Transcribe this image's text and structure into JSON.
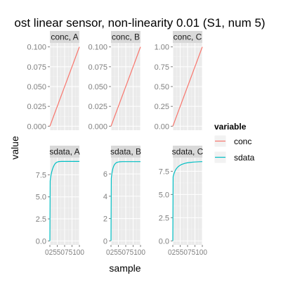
{
  "chart_data": {
    "type": "line",
    "title": "ost linear sensor, non-linearity 0.01 (S1, num 5)",
    "xlabel": "sample",
    "ylabel": "value",
    "grid": true,
    "legend_position": "right",
    "legend": {
      "title": "variable",
      "entries": [
        {
          "name": "conc",
          "color": "#F8766D"
        },
        {
          "name": "sdata",
          "color": "#00BFC4"
        }
      ]
    },
    "x_tick_text": "025507510 0",
    "x_tick_display": "0255075100",
    "xlim": [
      0,
      100
    ],
    "panels": [
      {
        "strip": "conc, A",
        "series": "conc",
        "ylim": [
          -0.005,
          0.105
        ],
        "yticks": [
          0.0,
          0.025,
          0.05,
          0.075,
          0.1
        ],
        "ytick_labels": [
          "0.000",
          "0.025",
          "0.050",
          "0.075",
          "0.100"
        ],
        "x": [
          0,
          100
        ],
        "y": [
          0.0,
          0.1
        ]
      },
      {
        "strip": "conc, B",
        "series": "conc",
        "ylim": [
          -0.005,
          0.105
        ],
        "yticks": [
          0.0,
          0.025,
          0.05,
          0.075,
          0.1
        ],
        "ytick_labels": [
          "0.000",
          "0.025",
          "0.050",
          "0.075",
          "0.100"
        ],
        "x": [
          0,
          100
        ],
        "y": [
          0.0,
          0.1
        ]
      },
      {
        "strip": "conc, C",
        "series": "conc",
        "ylim": [
          -0.05,
          1.05
        ],
        "yticks": [
          0.0,
          0.25,
          0.5,
          0.75,
          1.0
        ],
        "ytick_labels": [
          "0.00",
          "0.25",
          "0.50",
          "0.75",
          "1.00"
        ],
        "x": [
          0,
          100
        ],
        "y": [
          0.0,
          1.0
        ]
      },
      {
        "strip": "sdata, A",
        "series": "sdata",
        "ylim": [
          -0.45,
          9.45
        ],
        "yticks": [
          0.0,
          2.5,
          5.0,
          7.5
        ],
        "ytick_labels": [
          "0.0",
          "2.5",
          "5.0",
          "7.5"
        ],
        "x": [
          0,
          1,
          2,
          4,
          6,
          8,
          10,
          12,
          14,
          16,
          18,
          20,
          25,
          30,
          40,
          50,
          60,
          70,
          80,
          90,
          100
        ],
        "y": [
          0.0,
          6.8,
          7.1,
          7.5,
          7.8,
          8.05,
          8.25,
          8.42,
          8.56,
          8.68,
          8.77,
          8.84,
          8.95,
          9.0,
          9.02,
          9.02,
          9.02,
          9.02,
          9.02,
          9.02,
          9.02
        ]
      },
      {
        "strip": "sdata, B",
        "series": "sdata",
        "ylim": [
          -0.36,
          7.46
        ],
        "yticks": [
          0,
          2,
          4,
          6
        ],
        "ytick_labels": [
          "0",
          "2",
          "4",
          "6"
        ],
        "x": [
          0,
          1,
          2,
          4,
          6,
          8,
          10,
          12,
          14,
          16,
          18,
          20,
          25,
          30,
          40,
          50,
          60,
          70,
          80,
          90,
          100
        ],
        "y": [
          0.0,
          5.6,
          5.85,
          6.2,
          6.45,
          6.62,
          6.75,
          6.84,
          6.91,
          6.96,
          7.0,
          7.03,
          7.07,
          7.09,
          7.1,
          7.1,
          7.1,
          7.1,
          7.1,
          7.1,
          7.1
        ]
      },
      {
        "strip": "sdata, C",
        "series": "sdata",
        "ylim": [
          -0.43,
          8.97
        ],
        "yticks": [
          0.0,
          2.5,
          5.0,
          7.5
        ],
        "ytick_labels": [
          "0.0",
          "2.5",
          "5.0",
          "7.5"
        ],
        "x": [
          0,
          1,
          2,
          4,
          6,
          8,
          10,
          14,
          18,
          22,
          26,
          30,
          40,
          50,
          60,
          70,
          80,
          90,
          100
        ],
        "y": [
          0.0,
          6.9,
          7.05,
          7.25,
          7.42,
          7.56,
          7.68,
          7.86,
          7.99,
          8.09,
          8.17,
          8.24,
          8.35,
          8.42,
          8.46,
          8.49,
          8.51,
          8.53,
          8.54
        ]
      }
    ]
  }
}
